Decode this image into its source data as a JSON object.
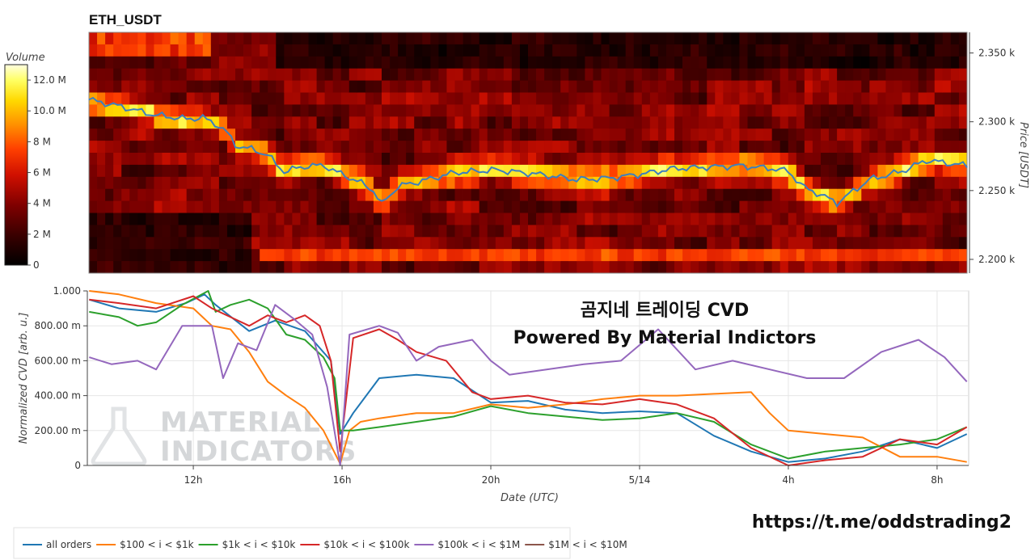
{
  "chart_data": [
    {
      "type": "heatmap",
      "title": "ETH_USDT",
      "ylabel": "Price [USDT]",
      "yticks": [
        "2.200 k",
        "2.250 k",
        "2.300 k",
        "2.350 k"
      ],
      "ytick_values": [
        2200,
        2250,
        2300,
        2350
      ],
      "ylim": [
        2190,
        2365
      ],
      "colorbar": {
        "title": "Volume",
        "ticks": [
          "0",
          "2 M",
          "4 M",
          "6 M",
          "8 M",
          "10.0 M",
          "12.0 M"
        ],
        "tick_values": [
          0,
          2,
          4,
          6,
          8,
          10,
          12
        ],
        "range": [
          0,
          13
        ],
        "unit": "M"
      },
      "colorscale": [
        "#000000",
        "#3a0000",
        "#800000",
        "#d01000",
        "#ff4000",
        "#ff9000",
        "#ffd800",
        "#ffff60",
        "#ffffe0"
      ],
      "price_line": {
        "color": "#3c7fc0",
        "x": [
          0,
          4,
          8,
          12,
          14,
          16,
          17,
          18,
          20,
          22,
          23,
          24,
          27,
          29,
          31,
          33,
          35,
          36,
          38,
          41,
          45,
          50,
          55,
          60,
          64,
          68,
          72,
          76,
          80,
          84,
          86,
          88,
          90,
          92,
          96,
          100,
          103,
          108
        ],
        "y": [
          2316,
          2311,
          2305,
          2302,
          2303,
          2297,
          2292,
          2283,
          2280,
          2276,
          2269,
          2264,
          2268,
          2268,
          2262,
          2257,
          2250,
          2240,
          2253,
          2257,
          2263,
          2265,
          2262,
          2258,
          2259,
          2262,
          2266,
          2267,
          2268,
          2266,
          2264,
          2252,
          2247,
          2241,
          2258,
          2264,
          2272,
          2268
        ]
      }
    },
    {
      "type": "line",
      "xlabel": "Date (UTC)",
      "ylabel": "Normalized CVD [arb. u.]",
      "xticks": [
        "12h",
        "16h",
        "20h",
        "5/14",
        "4h",
        "8h"
      ],
      "xtick_positions": [
        12,
        16,
        20,
        24,
        28,
        32
      ],
      "xlim": [
        9.15,
        32.85
      ],
      "yticks": [
        "0",
        "200.00 m",
        "400.00 m",
        "600.00 m",
        "800.00 m",
        "1.000"
      ],
      "ytick_values": [
        0,
        0.2,
        0.4,
        0.6,
        0.8,
        1.0
      ],
      "ylim": [
        0,
        1.0
      ],
      "series": [
        {
          "name": "all orders",
          "color": "#1f77b4",
          "x": [
            9.2,
            10,
            11,
            11.8,
            12.3,
            12.6,
            13.5,
            14.2,
            15,
            15.7,
            15.95,
            16.3,
            17,
            18,
            19,
            20,
            21,
            22,
            23,
            24,
            25,
            26,
            27,
            28,
            29,
            30,
            31,
            32,
            32.8
          ],
          "y": [
            0.95,
            0.9,
            0.88,
            0.93,
            0.98,
            0.92,
            0.77,
            0.83,
            0.77,
            0.6,
            0.18,
            0.3,
            0.5,
            0.52,
            0.5,
            0.36,
            0.37,
            0.32,
            0.3,
            0.31,
            0.3,
            0.17,
            0.08,
            0.02,
            0.04,
            0.08,
            0.15,
            0.1,
            0.18
          ]
        },
        {
          "name": "$100 < i < $1k",
          "color": "#ff7f0e",
          "x": [
            9.2,
            10,
            11,
            12,
            12.5,
            13,
            13.5,
            14,
            14.5,
            15,
            15.5,
            15.95,
            16.2,
            16.5,
            17,
            18,
            19,
            20,
            21,
            22,
            23,
            24,
            25,
            26,
            27,
            27.5,
            28,
            29,
            30,
            31,
            32,
            32.8
          ],
          "y": [
            1.0,
            0.98,
            0.93,
            0.9,
            0.8,
            0.78,
            0.65,
            0.48,
            0.4,
            0.33,
            0.2,
            0.01,
            0.2,
            0.25,
            0.27,
            0.3,
            0.3,
            0.35,
            0.33,
            0.35,
            0.38,
            0.4,
            0.4,
            0.41,
            0.42,
            0.3,
            0.2,
            0.18,
            0.16,
            0.05,
            0.05,
            0.02
          ]
        },
        {
          "name": "$1k < i < $10k",
          "color": "#2ca02c",
          "x": [
            9.2,
            10,
            10.5,
            11,
            11.7,
            12.4,
            12.6,
            13,
            13.5,
            14,
            14.5,
            15,
            15.5,
            15.8,
            15.95,
            16.3,
            17,
            18,
            19,
            20,
            21,
            22,
            23,
            24,
            25,
            26,
            27,
            28,
            29,
            30,
            31,
            32,
            32.8
          ],
          "y": [
            0.88,
            0.85,
            0.8,
            0.82,
            0.92,
            1.0,
            0.88,
            0.92,
            0.95,
            0.9,
            0.75,
            0.72,
            0.62,
            0.5,
            0.2,
            0.2,
            0.22,
            0.25,
            0.28,
            0.34,
            0.3,
            0.28,
            0.26,
            0.27,
            0.3,
            0.25,
            0.12,
            0.04,
            0.08,
            0.1,
            0.12,
            0.15,
            0.22
          ]
        },
        {
          "name": "$10k < i < $100k",
          "color": "#d62728",
          "x": [
            9.2,
            10,
            11,
            12,
            12.5,
            13,
            13.5,
            14,
            14.5,
            15,
            15.4,
            15.7,
            15.95,
            16.3,
            17,
            17.5,
            18,
            18.8,
            19.5,
            20,
            21,
            22,
            23,
            24,
            25,
            26,
            27,
            28,
            29,
            30,
            31,
            32,
            32.8
          ],
          "y": [
            0.95,
            0.93,
            0.9,
            0.97,
            0.9,
            0.85,
            0.8,
            0.86,
            0.82,
            0.86,
            0.8,
            0.6,
            0.08,
            0.73,
            0.78,
            0.72,
            0.65,
            0.6,
            0.42,
            0.38,
            0.4,
            0.36,
            0.35,
            0.38,
            0.35,
            0.27,
            0.1,
            0.0,
            0.03,
            0.05,
            0.15,
            0.12,
            0.22
          ]
        },
        {
          "name": "$100k < i < $1M",
          "color": "#9467bd",
          "x": [
            9.2,
            9.8,
            10.5,
            11,
            11.7,
            12.5,
            12.8,
            13.2,
            13.7,
            14.2,
            14.7,
            15.2,
            15.6,
            15.95,
            16.2,
            17,
            17.5,
            18,
            18.6,
            19.5,
            20,
            20.5,
            21.5,
            22.5,
            23.5,
            24.5,
            25.5,
            26.5,
            27.5,
            28.5,
            29.5,
            30.5,
            31.5,
            32.2,
            32.8
          ],
          "y": [
            0.62,
            0.58,
            0.6,
            0.55,
            0.8,
            0.8,
            0.5,
            0.7,
            0.66,
            0.92,
            0.84,
            0.75,
            0.45,
            0.0,
            0.75,
            0.8,
            0.76,
            0.6,
            0.68,
            0.72,
            0.6,
            0.52,
            0.55,
            0.58,
            0.6,
            0.78,
            0.55,
            0.6,
            0.55,
            0.5,
            0.5,
            0.65,
            0.72,
            0.62,
            0.48
          ]
        },
        {
          "name": "$1M < i < $10M",
          "color": "#8c564b",
          "x": [],
          "y": []
        }
      ],
      "annotation": [
        "곰지네 트레이딩 CVD",
        "Powered By Material Indictors"
      ]
    }
  ],
  "watermark": {
    "line1": "MATERIAL",
    "line2": "INDICATORS"
  },
  "footer_url": "https://t.me/oddstrading2"
}
